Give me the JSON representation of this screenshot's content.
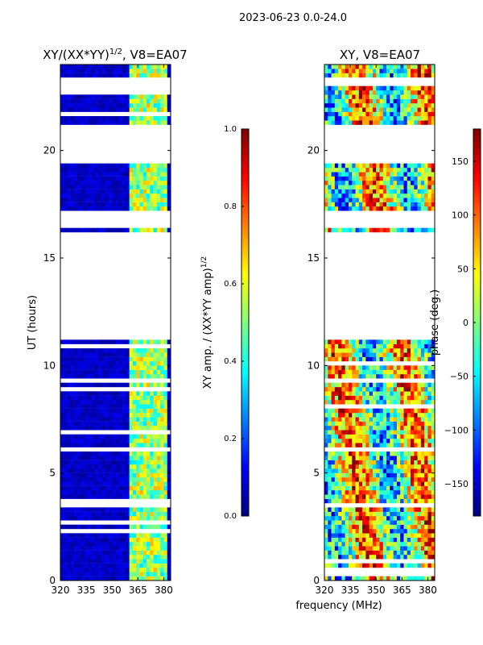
{
  "chart_data": {
    "type": "heatmap",
    "suptitle": "2023-06-23 0.0-24.0",
    "shared_xlabel": "frequency (MHz)",
    "panels": [
      {
        "id": "amp",
        "title_main": "XY/(XX*YY)",
        "title_sup": "1/2",
        "title_tail": ", V8=EA07",
        "ylabel": "UT (hours)",
        "xlim": [
          320,
          384
        ],
        "ylim": [
          0,
          24
        ],
        "xticks": [
          320,
          335,
          350,
          365,
          380
        ],
        "yticks": [
          0,
          5,
          10,
          15,
          20
        ],
        "colormap": "jet",
        "colorbar": {
          "label_main": "XY amp. / (XX*YY amp)",
          "label_sup": "1/2",
          "range": [
            0.0,
            1.0
          ],
          "ticks": [
            "0.0",
            "0.2",
            "0.4",
            "0.6",
            "0.8",
            "1.0"
          ],
          "tick_values": [
            0.0,
            0.2,
            0.4,
            0.6,
            0.8,
            1.0
          ]
        }
      },
      {
        "id": "phase",
        "title_main": "XY, V8=EA07",
        "ylabel": "",
        "xlim": [
          320,
          384
        ],
        "ylim": [
          0,
          24
        ],
        "xticks": [
          320,
          335,
          350,
          365,
          380
        ],
        "yticks": [
          0,
          5,
          10,
          15,
          20
        ],
        "colormap": "jet",
        "colorbar": {
          "label_main": "phase (deg.)",
          "range": [
            -180,
            180
          ],
          "ticks": [
            "−150",
            "−100",
            "−50",
            "0",
            "50",
            "100",
            "150"
          ],
          "tick_values": [
            -150,
            -100,
            -50,
            0,
            50,
            100,
            150
          ]
        }
      }
    ],
    "data_gaps_ut_hours": [
      [
        20.7,
        21.2
      ],
      [
        19.5,
        20.7
      ],
      [
        16.4,
        17.1
      ],
      [
        11.2,
        16.2
      ],
      [
        3.4,
        3.6
      ],
      [
        6.0,
        6.2
      ],
      [
        9.2,
        9.4
      ],
      [
        23.1,
        23.4
      ]
    ],
    "amp_bright_band_mhz": [
      361,
      381
    ]
  }
}
